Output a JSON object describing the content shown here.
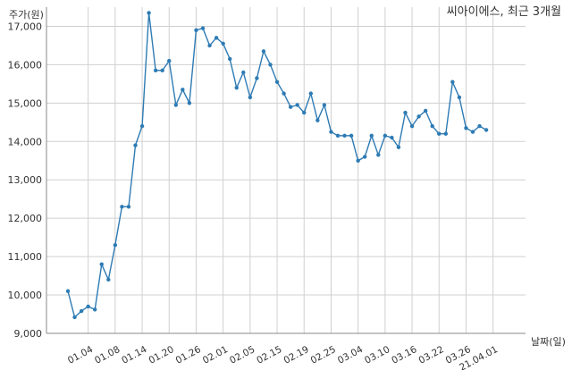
{
  "chart_data": {
    "type": "line",
    "title": "씨아이에스, 최근 3개월",
    "ylabel": "주가(원)",
    "xlabel": "날짜(일)",
    "ylim": [
      9000,
      17500
    ],
    "yticks": [
      9000,
      10000,
      11000,
      12000,
      13000,
      14000,
      15000,
      16000,
      17000
    ],
    "ytick_labels": [
      "9,000",
      "10,000",
      "11,000",
      "12,000",
      "13,000",
      "14,000",
      "15,000",
      "16,000",
      "17,000"
    ],
    "xtick_labels": [
      "01.04",
      "01.08",
      "01.14",
      "01.20",
      "01.26",
      "02.01",
      "02.05",
      "02.15",
      "02.19",
      "02.25",
      "03.04",
      "03.10",
      "03.16",
      "03.22",
      "03.26",
      "21.04.01"
    ],
    "xtick_indices": [
      3,
      7,
      11,
      15,
      19,
      23,
      27,
      31,
      35,
      39,
      43,
      47,
      51,
      55,
      59,
      63
    ],
    "grid": true,
    "series": [
      {
        "color": "#2e7bb4",
        "values": [
          10100,
          9420,
          9580,
          9700,
          9620,
          10800,
          10400,
          11300,
          12300,
          12300,
          13900,
          14400,
          17350,
          15850,
          15850,
          16100,
          14950,
          15350,
          15000,
          16900,
          16950,
          16500,
          16700,
          16550,
          16150,
          15400,
          15800,
          15150,
          15650,
          16350,
          16000,
          15550,
          15250,
          14900,
          14950,
          14750,
          15250,
          14550,
          14950,
          14250,
          14150,
          14150,
          14150,
          13500,
          13600,
          14150,
          13650,
          14150,
          14100,
          13850,
          14750,
          14400,
          14650,
          14800,
          14400,
          14200,
          14200,
          15550,
          15150,
          14350,
          14250,
          14400,
          14300
        ]
      }
    ]
  }
}
